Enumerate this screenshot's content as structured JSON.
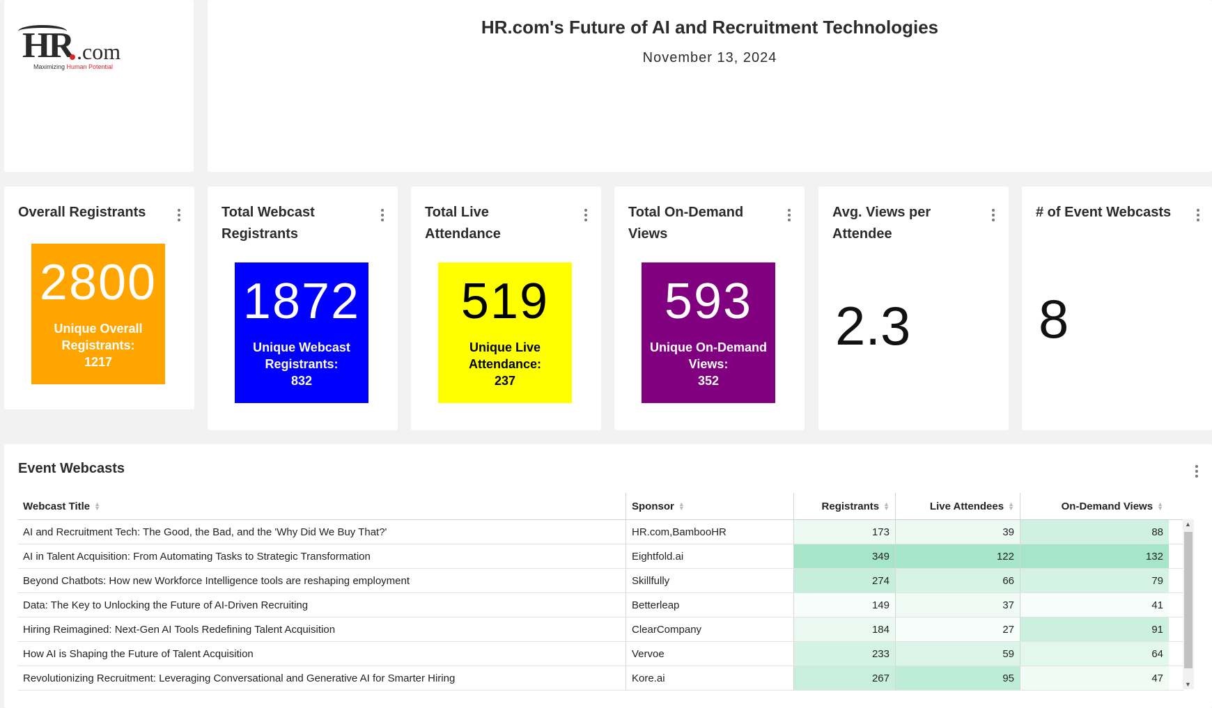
{
  "header": {
    "title": "HR.com's Future of AI and Recruitment Technologies",
    "date": "November 13, 2024"
  },
  "logo": {
    "main": "HR",
    "suffix": ".com",
    "tagline_prefix": "Maximizing ",
    "tagline_highlight": "Human Potential",
    "accent_color": "#d9262a"
  },
  "kpis": [
    {
      "title": "Overall Registrants",
      "value": "2800",
      "sub": "Unique Overall Registrants:",
      "sub_value": "1217",
      "bg": "#ffa500",
      "fg": "#ffffff"
    },
    {
      "title": "Total Webcast Registrants",
      "value": "1872",
      "sub": "Unique Webcast Registrants:",
      "sub_value": "832",
      "bg": "#0000ff",
      "fg": "#ffffff"
    },
    {
      "title": "Total Live Attendance",
      "value": "519",
      "sub": "Unique Live Attendance:",
      "sub_value": "237",
      "bg": "#ffff00",
      "fg": "#000000"
    },
    {
      "title": "Total On-Demand Views",
      "value": "593",
      "sub": "Unique On-Demand Views:",
      "sub_value": "352",
      "bg": "#800080",
      "fg": "#ffffff"
    },
    {
      "title": "Avg. Views per Attendee",
      "value": "2.3"
    },
    {
      "title": "# of Event Webcasts",
      "value": "8"
    }
  ],
  "table": {
    "title": "Event Webcasts",
    "columns": [
      "Webcast Title",
      "Sponsor",
      "Registrants",
      "Live Attendees",
      "On-Demand Views"
    ],
    "rows": [
      [
        "AI and Recruitment Tech: The Good, the Bad, and the 'Why Did We Buy That?'",
        "HR.com,BambooHR",
        "173",
        "39",
        "88"
      ],
      [
        "AI in Talent Acquisition: From Automating Tasks to Strategic Transformation",
        "Eightfold.ai",
        "349",
        "122",
        "132"
      ],
      [
        "Beyond Chatbots: How new Workforce Intelligence tools are reshaping employment",
        "Skillfully",
        "274",
        "66",
        "79"
      ],
      [
        "Data: The Key to Unlocking the Future of AI-Driven Recruiting",
        "Betterleap",
        "149",
        "37",
        "41"
      ],
      [
        "Hiring Reimagined: Next-Gen AI Tools Redefining Talent Acquisition",
        "ClearCompany",
        "184",
        "27",
        "91"
      ],
      [
        "How AI is Shaping the Future of Talent Acquisition",
        "Vervoe",
        "233",
        "59",
        "64"
      ],
      [
        "Revolutionizing Recruitment: Leveraging Conversational and Generative AI for Smarter Hiring",
        "Kore.ai",
        "267",
        "95",
        "47"
      ]
    ],
    "heat_color": "#2ec27e"
  }
}
